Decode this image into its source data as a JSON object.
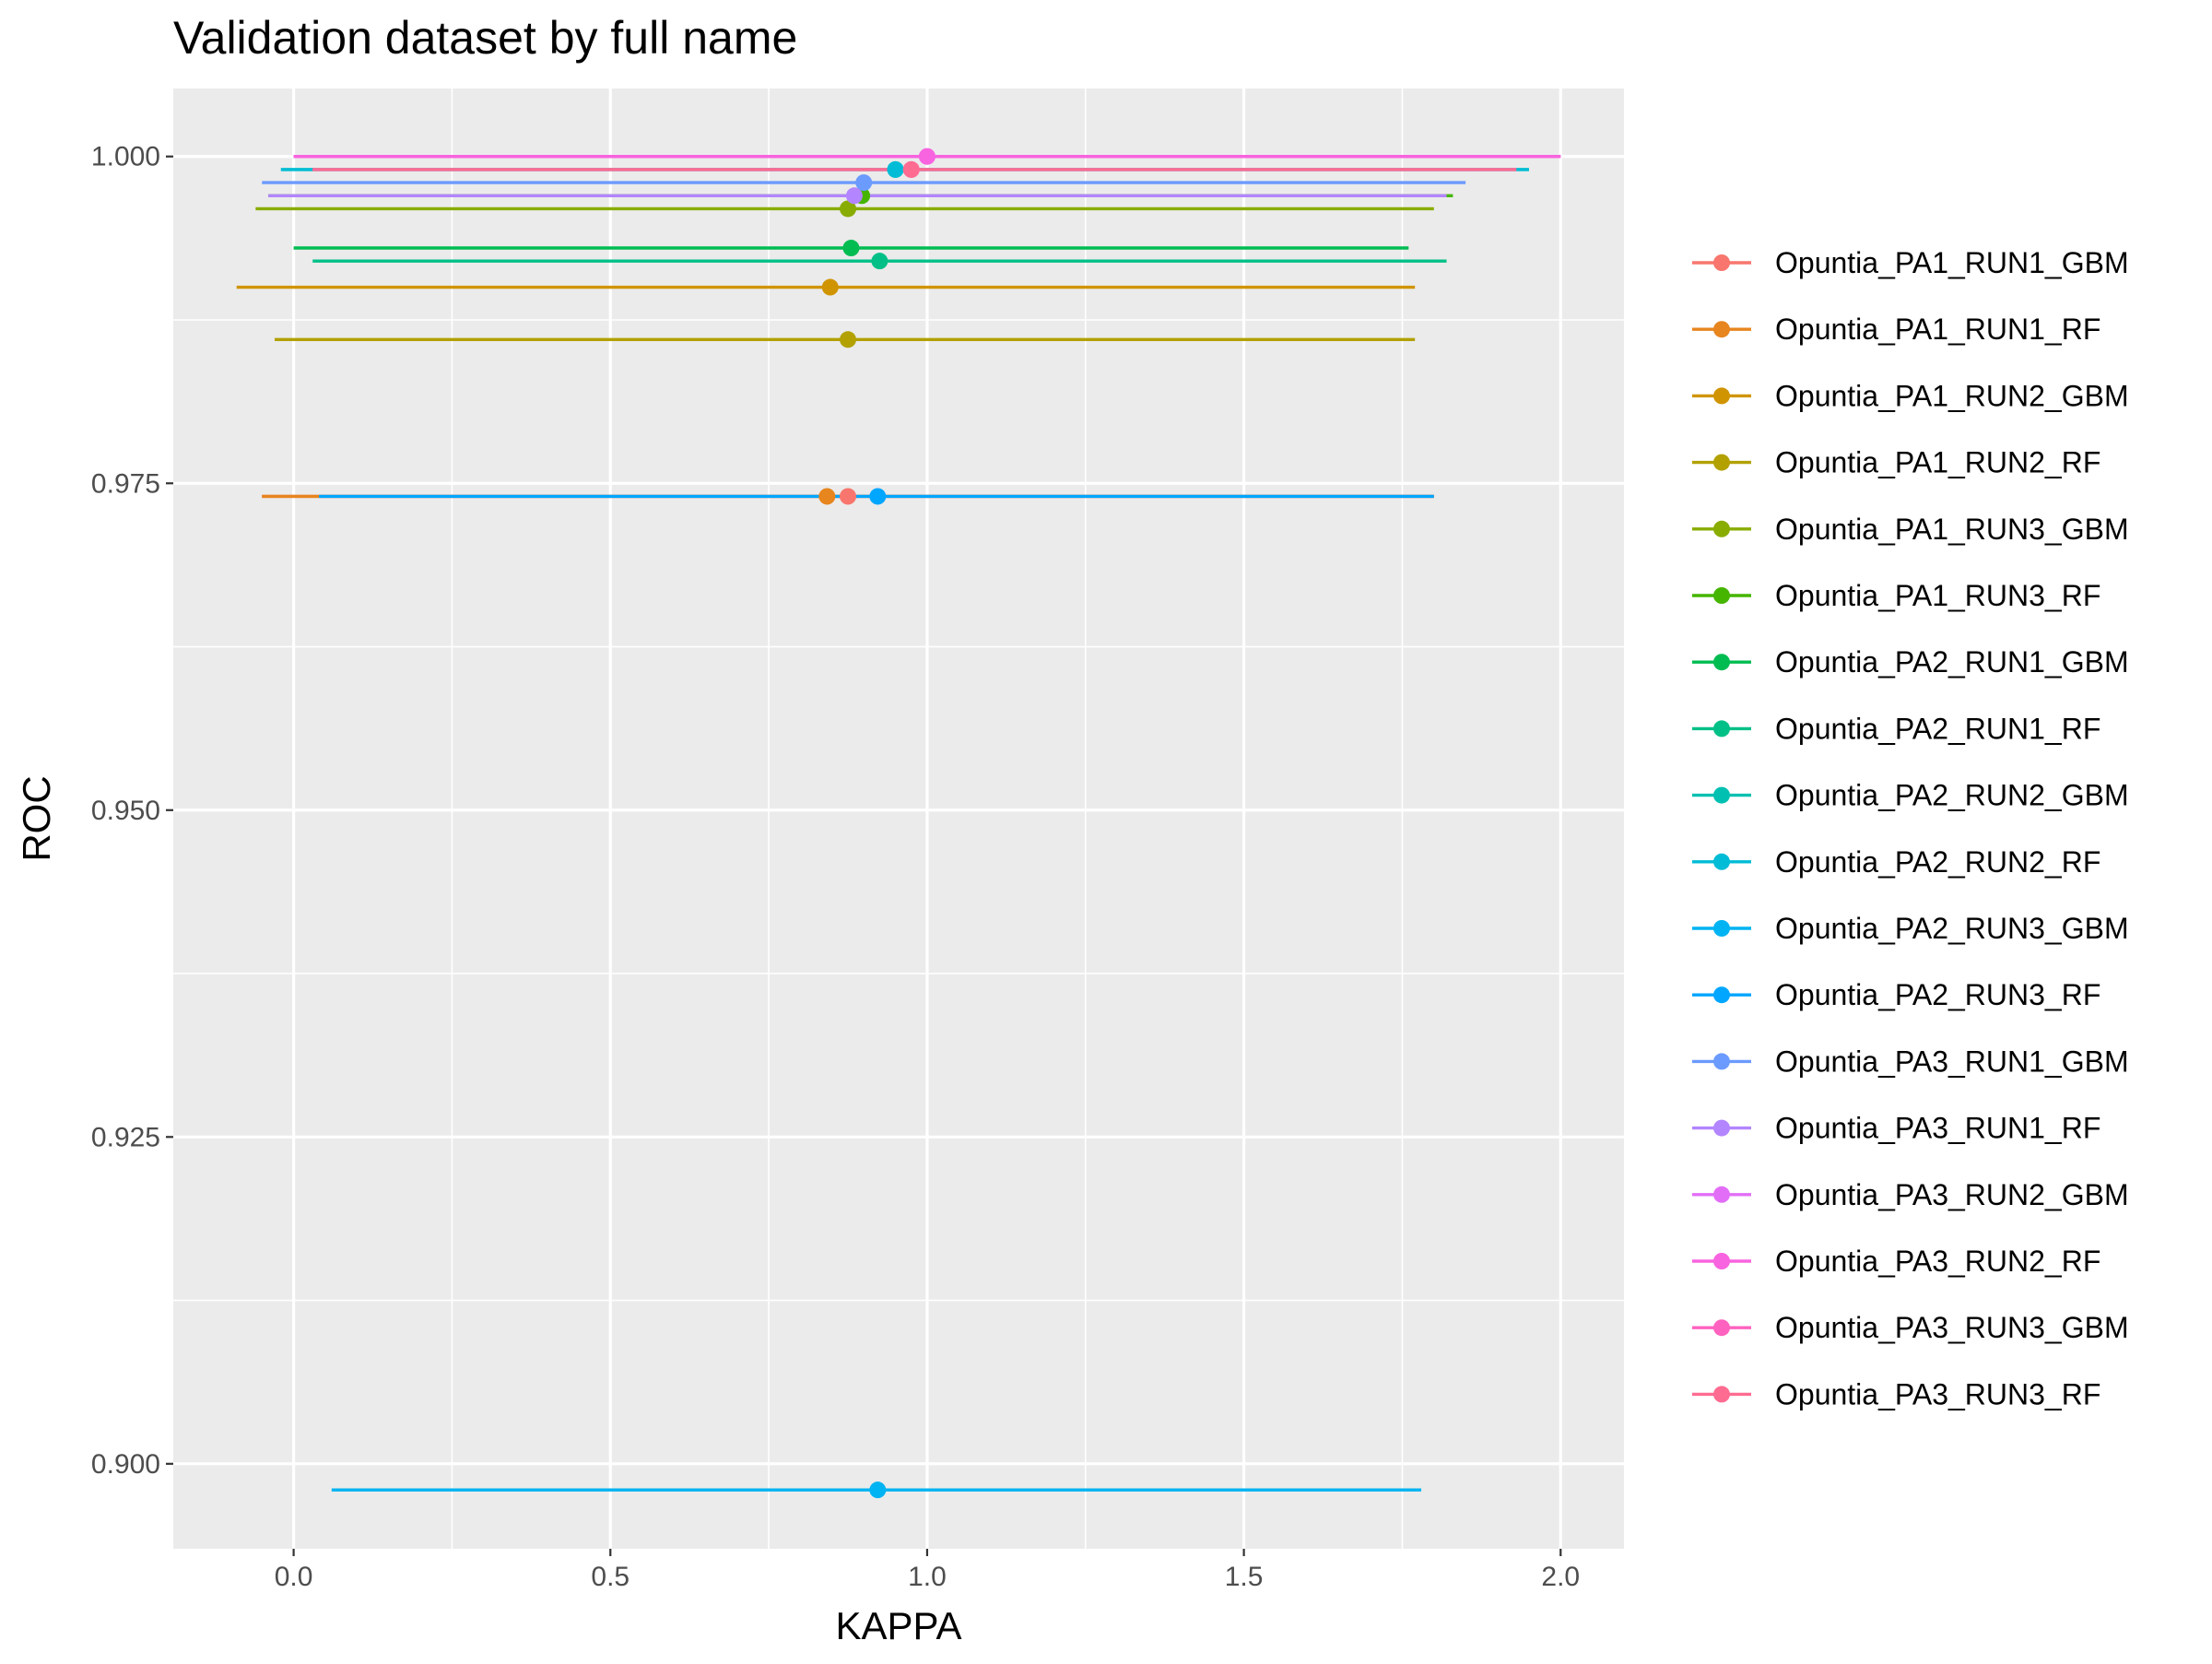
{
  "chart_data": {
    "type": "scatter",
    "title": "Validation dataset by full name",
    "xlabel": "KAPPA",
    "ylabel": "ROC",
    "xlim": [
      -0.19,
      2.1
    ],
    "ylim": [
      0.8935,
      1.0052
    ],
    "x_ticks": [
      0.0,
      0.5,
      1.0,
      1.5,
      2.0
    ],
    "x_tick_labels": [
      "0.0",
      "0.5",
      "1.0",
      "1.5",
      "2.0"
    ],
    "y_ticks": [
      0.9,
      0.925,
      0.95,
      0.975,
      1.0
    ],
    "y_tick_labels": [
      "0.900",
      "0.925",
      "0.950",
      "0.975",
      "1.000"
    ],
    "grid": true,
    "background": "#EBEBEB",
    "legend_position": "right",
    "series": [
      {
        "name": "Opuntia_PA1_RUN1_GBM",
        "color": "#F8766D",
        "kappa": 0.875,
        "roc": 0.974,
        "kappa_min": -0.05,
        "kappa_max": 1.8
      },
      {
        "name": "Opuntia_PA1_RUN1_RF",
        "color": "#E7851E",
        "kappa": 0.842,
        "roc": 0.974,
        "kappa_min": -0.05,
        "kappa_max": 1.8
      },
      {
        "name": "Opuntia_PA1_RUN2_GBM",
        "color": "#D09400",
        "kappa": 0.847,
        "roc": 0.99,
        "kappa_min": -0.09,
        "kappa_max": 1.77
      },
      {
        "name": "Opuntia_PA1_RUN2_RF",
        "color": "#B2A100",
        "kappa": 0.875,
        "roc": 0.986,
        "kappa_min": -0.03,
        "kappa_max": 1.77
      },
      {
        "name": "Opuntia_PA1_RUN3_GBM",
        "color": "#89AC00",
        "kappa": 0.875,
        "roc": 0.996,
        "kappa_min": -0.06,
        "kappa_max": 1.8
      },
      {
        "name": "Opuntia_PA1_RUN3_RF",
        "color": "#45B500",
        "kappa": 0.897,
        "roc": 0.997,
        "kappa_min": -0.04,
        "kappa_max": 1.83
      },
      {
        "name": "Opuntia_PA2_RUN1_GBM",
        "color": "#00BC51",
        "kappa": 0.88,
        "roc": 0.993,
        "kappa_min": 0.0,
        "kappa_max": 1.76
      },
      {
        "name": "Opuntia_PA2_RUN1_RF",
        "color": "#00C087",
        "kappa": 0.925,
        "roc": 0.992,
        "kappa_min": 0.03,
        "kappa_max": 1.82
      },
      {
        "name": "Opuntia_PA2_RUN2_GBM",
        "color": "#00C0B2",
        "kappa": 0.95,
        "roc": 0.999,
        "kappa_min": -0.02,
        "kappa_max": 1.95
      },
      {
        "name": "Opuntia_PA2_RUN2_RF",
        "color": "#00BCD6",
        "kappa": 0.95,
        "roc": 0.999,
        "kappa_min": -0.02,
        "kappa_max": 1.95
      },
      {
        "name": "Opuntia_PA2_RUN3_GBM",
        "color": "#00B3F2",
        "kappa": 0.922,
        "roc": 0.898,
        "kappa_min": 0.06,
        "kappa_max": 1.78
      },
      {
        "name": "Opuntia_PA2_RUN3_RF",
        "color": "#00A6FF",
        "kappa": 0.922,
        "roc": 0.974,
        "kappa_min": 0.04,
        "kappa_max": 1.8
      },
      {
        "name": "Opuntia_PA3_RUN1_GBM",
        "color": "#6B9BFF",
        "kappa": 0.9,
        "roc": 0.998,
        "kappa_min": -0.05,
        "kappa_max": 1.85
      },
      {
        "name": "Opuntia_PA3_RUN1_RF",
        "color": "#B385FF",
        "kappa": 0.885,
        "roc": 0.997,
        "kappa_min": -0.04,
        "kappa_max": 1.82
      },
      {
        "name": "Opuntia_PA3_RUN2_GBM",
        "color": "#E26EF7",
        "kappa": 1.0,
        "roc": 1.0,
        "kappa_min": 0.0,
        "kappa_max": 2.0
      },
      {
        "name": "Opuntia_PA3_RUN2_RF",
        "color": "#F863DF",
        "kappa": 1.0,
        "roc": 1.0,
        "kappa_min": 0.0,
        "kappa_max": 2.0
      },
      {
        "name": "Opuntia_PA3_RUN3_GBM",
        "color": "#FF62BF",
        "kappa": 0.975,
        "roc": 0.999,
        "kappa_min": 0.03,
        "kappa_max": 1.93
      },
      {
        "name": "Opuntia_PA3_RUN3_RF",
        "color": "#FF6C91",
        "kappa": 0.975,
        "roc": 0.999,
        "kappa_min": 0.03,
        "kappa_max": 1.93
      }
    ]
  }
}
